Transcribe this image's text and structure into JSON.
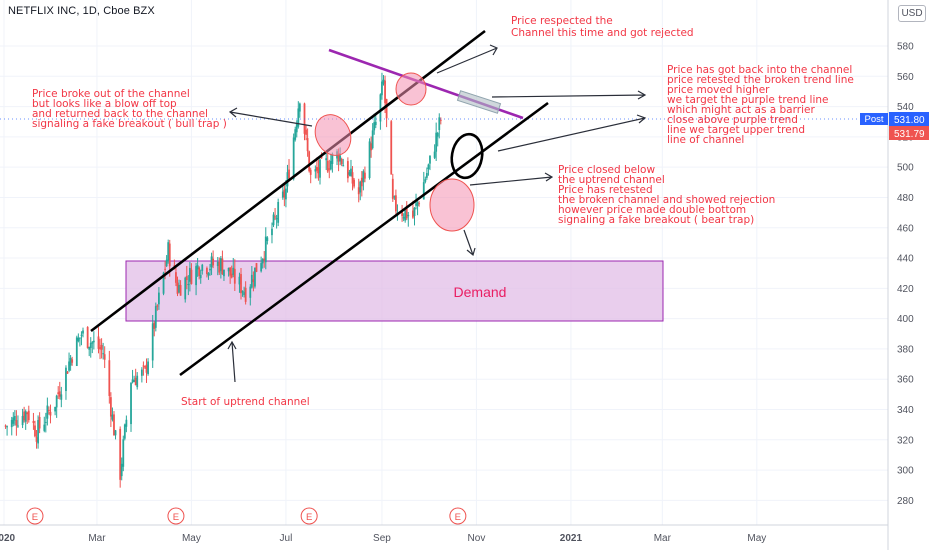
{
  "header": {
    "title": "NETFLIX INC, 1D, Cboe BZX",
    "currency": "USD"
  },
  "price_tags": {
    "post_label": "Post",
    "post_value": "531.80",
    "last_value": "531.79"
  },
  "colors": {
    "up": "#26a69a",
    "down": "#ef5350",
    "annotation": "#f23645",
    "channel": "#000000",
    "resistance": "#9c27b0",
    "demand_fill": "#e1bee7",
    "demand_border": "#9c27b0",
    "post_tag": "#2962ff",
    "last_tag": "#ef5350"
  },
  "annotations": {
    "rejected": [
      "Price respected the",
      "Channel this time and got rejected"
    ],
    "bull_trap": [
      "Price broke out of the channel",
      "but looks like a blow off top",
      "and returned back to the channel",
      "signaling a fake breakout ( bull trap )"
    ],
    "back_in_channel": [
      "Price has got back into the channel",
      "price retested the broken trend line",
      "price moved higher",
      "we target the purple trend line",
      "which might act as a barrier",
      "close above purple trend",
      "line we target upper trend",
      "line of channel"
    ],
    "bear_trap": [
      "Price closed below",
      "the uptrend channel",
      "Price has retested",
      "the broken channel and showed rejection",
      "however price made double bottom",
      "signaling a fake breakout ( bear trap)"
    ],
    "start_channel": "Start of uptrend channel",
    "demand": "Demand",
    "earnings_marker": "E"
  },
  "chart_data": {
    "type": "candlestick",
    "title": "NETFLIX INC, 1D, Cboe BZX",
    "y_axis": {
      "ticks": [
        280,
        300,
        320,
        340,
        360,
        380,
        400,
        420,
        440,
        460,
        480,
        500,
        520,
        540,
        560,
        580
      ],
      "range": [
        265,
        600
      ]
    },
    "x_axis": {
      "ticks": [
        "2020",
        "Mar",
        "May",
        "Jul",
        "Sep",
        "Nov",
        "2021",
        "Mar",
        "May"
      ]
    },
    "price_path": [
      {
        "date": "2020-01-02",
        "close": 329
      },
      {
        "date": "2020-01-16",
        "close": 339
      },
      {
        "date": "2020-01-22",
        "close": 325
      },
      {
        "date": "2020-02-03",
        "close": 345
      },
      {
        "date": "2020-02-14",
        "close": 377
      },
      {
        "date": "2020-02-20",
        "close": 390
      },
      {
        "date": "2020-03-05",
        "close": 378
      },
      {
        "date": "2020-03-16",
        "close": 298
      },
      {
        "date": "2020-03-23",
        "close": 360
      },
      {
        "date": "2020-04-01",
        "close": 364
      },
      {
        "date": "2020-04-16",
        "close": 445
      },
      {
        "date": "2020-04-22",
        "close": 420
      },
      {
        "date": "2020-05-06",
        "close": 435
      },
      {
        "date": "2020-05-20",
        "close": 436
      },
      {
        "date": "2020-06-05",
        "close": 418
      },
      {
        "date": "2020-06-17",
        "close": 445
      },
      {
        "date": "2020-07-01",
        "close": 485
      },
      {
        "date": "2020-07-10",
        "close": 548
      },
      {
        "date": "2020-07-17",
        "close": 493
      },
      {
        "date": "2020-08-04",
        "close": 509
      },
      {
        "date": "2020-08-17",
        "close": 482
      },
      {
        "date": "2020-08-28",
        "close": 529
      },
      {
        "date": "2020-09-02",
        "close": 556
      },
      {
        "date": "2020-09-08",
        "close": 475
      },
      {
        "date": "2020-09-21",
        "close": 467
      },
      {
        "date": "2020-10-02",
        "close": 503
      },
      {
        "date": "2020-10-09",
        "close": 531.79
      }
    ],
    "levels": {
      "last": 531.79,
      "post": 531.8,
      "demand_zone": [
        399,
        439
      ]
    },
    "earnings_markers": [
      "2020-01-21",
      "2020-04-21",
      "2020-07-16",
      "2020-10-20"
    ]
  }
}
